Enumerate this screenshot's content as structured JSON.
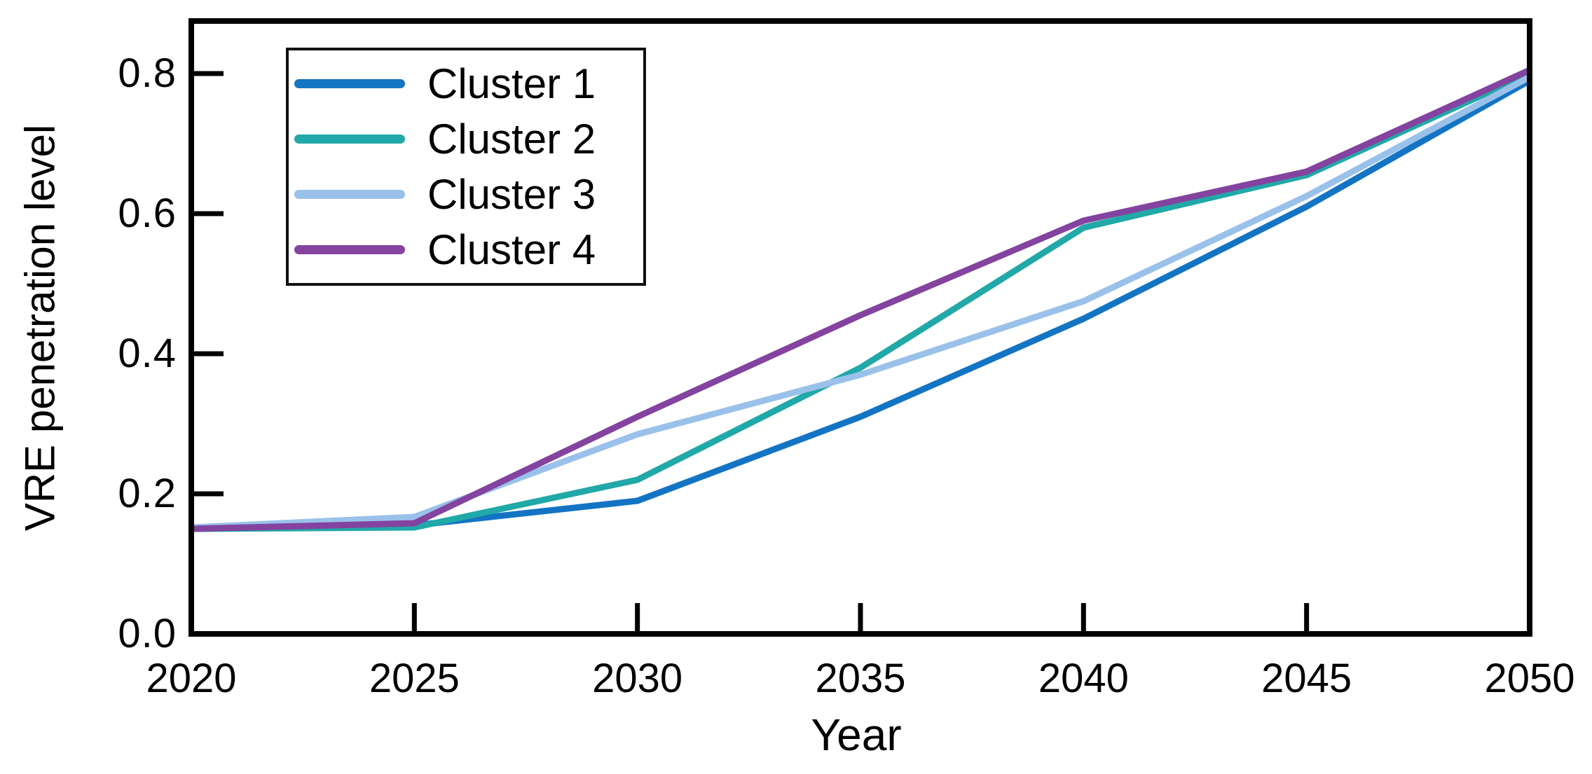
{
  "chart_data": {
    "type": "line",
    "title": "",
    "xlabel": "Year",
    "ylabel": "VRE penetration level",
    "x": [
      2020,
      2025,
      2030,
      2035,
      2040,
      2045,
      2050
    ],
    "xlim": [
      2020,
      2050
    ],
    "ylim": [
      0.0,
      0.875
    ],
    "xtick_labels": [
      "2020",
      "2025",
      "2030",
      "2035",
      "2040",
      "2045",
      "2050"
    ],
    "ytick_labels": [
      "0.0",
      "0.2",
      "0.4",
      "0.6",
      "0.8"
    ],
    "ytick_values": [
      0.0,
      0.2,
      0.4,
      0.6,
      0.8
    ],
    "grid": false,
    "legend_position": "upper-left-inside",
    "axis_color": "#000000",
    "series": [
      {
        "name": "Cluster 1",
        "color": "#1474c4",
        "values": [
          0.15,
          0.155,
          0.19,
          0.31,
          0.45,
          0.61,
          0.79
        ]
      },
      {
        "name": "Cluster 2",
        "color": "#21a8a8",
        "values": [
          0.15,
          0.152,
          0.22,
          0.38,
          0.58,
          0.655,
          0.8
        ]
      },
      {
        "name": "Cluster 3",
        "color": "#9ac1ea",
        "values": [
          0.152,
          0.167,
          0.285,
          0.37,
          0.475,
          0.625,
          0.795
        ]
      },
      {
        "name": "Cluster 4",
        "color": "#83439f",
        "values": [
          0.15,
          0.158,
          0.31,
          0.455,
          0.59,
          0.66,
          0.805
        ]
      }
    ]
  }
}
